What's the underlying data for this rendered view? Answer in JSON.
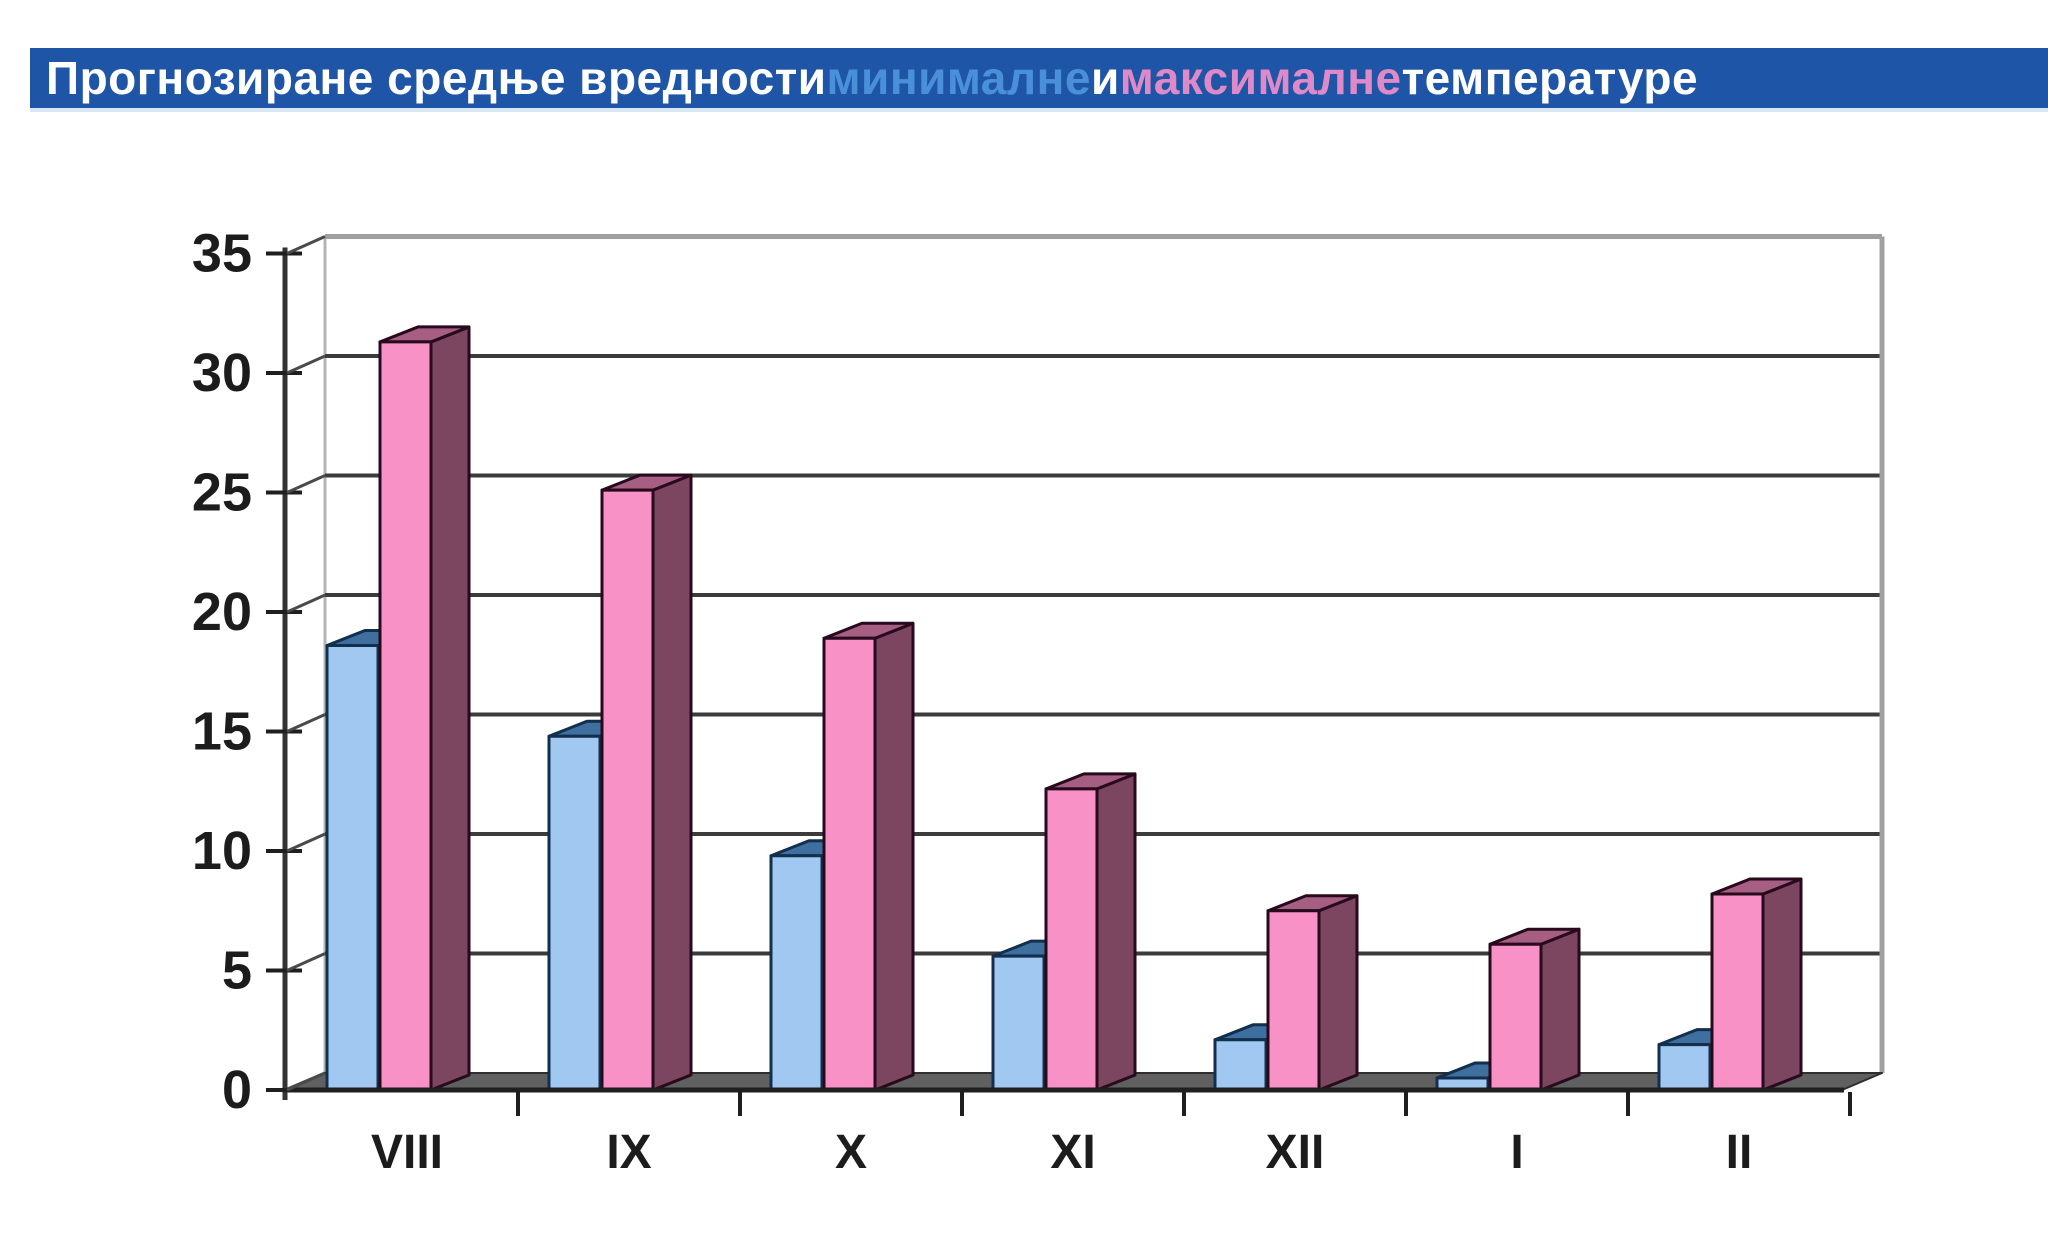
{
  "title_bar": {
    "background": "#1f55a6",
    "segments": [
      {
        "text": "Прогнозиране средње вредности ",
        "color": "#ffffff"
      },
      {
        "text": "минималне",
        "color": "#4a90d9"
      },
      {
        "text": " и ",
        "color": "#ffffff"
      },
      {
        "text": "максималне",
        "color": "#de89c8"
      },
      {
        "text": " температуре",
        "color": "#ffffff"
      }
    ]
  },
  "chart_data": {
    "type": "bar",
    "style": "3d-column",
    "title": "Прогнозиране средње вредности минималне и максималне температуре",
    "xlabel": "",
    "ylabel": "",
    "categories": [
      "VIII",
      "IX",
      "X",
      "XI",
      "XII",
      "I",
      "II"
    ],
    "series": [
      {
        "name": "минималне",
        "values": [
          18.6,
          14.8,
          9.8,
          5.6,
          2.1,
          0.5,
          1.9
        ]
      },
      {
        "name": "максималне",
        "values": [
          31.3,
          25.1,
          18.9,
          12.6,
          7.5,
          6.1,
          8.2
        ]
      }
    ],
    "ylim": [
      0,
      35
    ],
    "ytick_step": 5,
    "ytick_labels": [
      "0",
      "5",
      "10",
      "15",
      "20",
      "25",
      "30",
      "35"
    ],
    "grid": true,
    "legend_position": "none",
    "colors": {
      "min_front": "#a0c8f1",
      "min_top": "#3e6f9e",
      "min_side": "#35618c",
      "min_outline": "#122f4e",
      "max_front": "#f791c6",
      "max_top": "#a75e83",
      "max_side": "#7c4560",
      "max_outline": "#270a1c",
      "floor": "#606060",
      "grid_line": "#3b3b3b",
      "frame": "#a0a0a0",
      "wall_edge": "#b4b4b4",
      "axis": "#2a2a2a",
      "tick": "#1f1f1f",
      "label": "#1c1c1c",
      "wall": "#ffffff"
    }
  }
}
